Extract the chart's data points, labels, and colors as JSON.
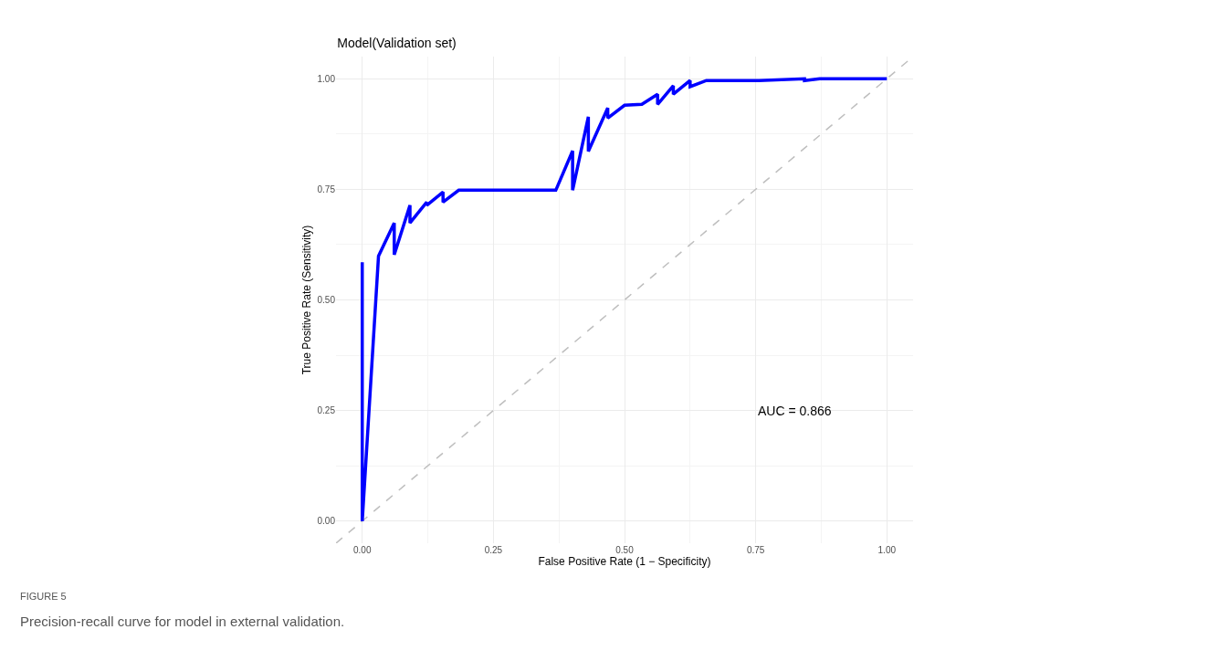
{
  "chart_data": {
    "type": "line",
    "title": "Model(Validation set)",
    "xlabel": "False Positive Rate (1 − Specificity)",
    "ylabel": "True Positive Rate (Sensitivity)",
    "annotations": [
      "AUC = 0.866",
      "FIGURE 5",
      "Precision-recall curve for model in external validation."
    ],
    "xlim": [
      -0.05,
      1.05
    ],
    "ylim": [
      -0.05,
      1.05
    ],
    "xticks": [
      {
        "value": 0,
        "label": "0.00"
      },
      {
        "value": 0.25,
        "label": "0.25"
      },
      {
        "value": 0.5,
        "label": "0.50"
      },
      {
        "value": 0.75,
        "label": "0.75"
      },
      {
        "value": 1,
        "label": "1.00"
      }
    ],
    "yticks": [
      {
        "value": 0,
        "label": "0.00"
      },
      {
        "value": 0.25,
        "label": "0.25"
      },
      {
        "value": 0.5,
        "label": "0.50"
      },
      {
        "value": 0.75,
        "label": "0.75"
      },
      {
        "value": 1,
        "label": "1.00"
      }
    ],
    "grid": true,
    "marker": "none",
    "series": [
      {
        "color": "#0000ff",
        "line_style": "solid",
        "x": [
          0,
          0,
          0.031,
          0.061,
          0.061,
          0.091,
          0.091,
          0.123,
          0.123,
          0.154,
          0.154,
          0.184,
          0.369,
          0.401,
          0.401,
          0.431,
          0.431,
          0.468,
          0.468,
          0.5,
          0.533,
          0.563,
          0.563,
          0.593,
          0.593,
          0.625,
          0.625,
          0.656,
          0.756,
          0.843,
          0.843,
          0.872,
          1
        ],
        "values": [
          0.585,
          0,
          0.599,
          0.674,
          0.602,
          0.714,
          0.674,
          0.721,
          0.714,
          0.744,
          0.721,
          0.748,
          0.748,
          0.837,
          0.748,
          0.914,
          0.836,
          0.934,
          0.911,
          0.94,
          0.942,
          0.965,
          0.942,
          0.984,
          0.965,
          0.996,
          0.982,
          0.996,
          0.996,
          1,
          0.996,
          1,
          1
        ]
      },
      {
        "color": "#bebebe",
        "line_style": "dashed",
        "x": [
          -0.05,
          1.05
        ],
        "values": [
          -0.05,
          1.05
        ]
      }
    ]
  }
}
